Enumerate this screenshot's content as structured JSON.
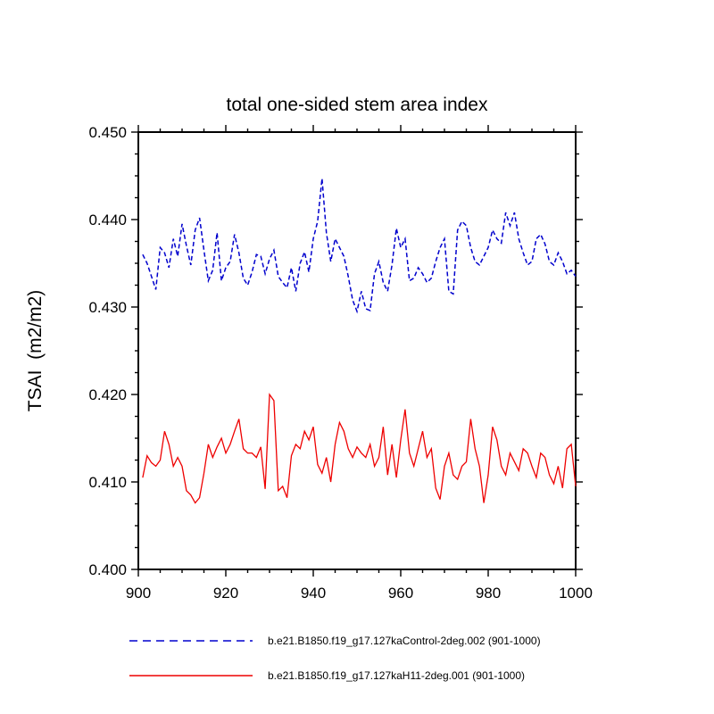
{
  "page": {
    "background": "#ffffff"
  },
  "chart_data": {
    "type": "line",
    "title": "total one-sided stem area index",
    "xlabel": "",
    "ylabel": "TSAI  (m2/m2)",
    "xlim": [
      900,
      1000
    ],
    "ylim": [
      0.4,
      0.45
    ],
    "x_ticks_major": [
      900,
      920,
      940,
      960,
      980,
      1000
    ],
    "x_tick_minor_step": 5,
    "y_ticks_major": [
      0.4,
      0.41,
      0.42,
      0.43,
      0.44,
      0.45
    ],
    "y_tick_minor_step": 0.0025,
    "y_tick_label_decimals": 3,
    "grid": false,
    "legend_position": "bottom",
    "frame_color": "#000000",
    "x_start": 901,
    "x_step": 1,
    "series": [
      {
        "name": "b.e21.B1850.f19_g17.127kaControl-2deg.002 (901-1000)",
        "color": "#0000cd",
        "line_style": "dashed",
        "values": [
          0.436,
          0.435,
          0.4335,
          0.432,
          0.4368,
          0.4362,
          0.4345,
          0.4378,
          0.4358,
          0.4395,
          0.437,
          0.4348,
          0.4388,
          0.4402,
          0.4365,
          0.433,
          0.4342,
          0.4385,
          0.433,
          0.4345,
          0.4352,
          0.4383,
          0.4362,
          0.4333,
          0.4325,
          0.434,
          0.436,
          0.4358,
          0.4338,
          0.4355,
          0.4365,
          0.4335,
          0.4328,
          0.4322,
          0.4345,
          0.4318,
          0.435,
          0.4363,
          0.434,
          0.4378,
          0.4398,
          0.4447,
          0.4385,
          0.4352,
          0.4378,
          0.4368,
          0.4358,
          0.4335,
          0.4308,
          0.4295,
          0.4318,
          0.4298,
          0.4296,
          0.4338,
          0.4352,
          0.4328,
          0.4318,
          0.4348,
          0.439,
          0.4368,
          0.4378,
          0.433,
          0.4333,
          0.4345,
          0.4338,
          0.4328,
          0.4333,
          0.4352,
          0.4368,
          0.4378,
          0.4318,
          0.4315,
          0.4388,
          0.4398,
          0.4393,
          0.4368,
          0.4352,
          0.4348,
          0.4358,
          0.4368,
          0.4388,
          0.4378,
          0.4373,
          0.4408,
          0.4393,
          0.4408,
          0.4378,
          0.4362,
          0.4348,
          0.4352,
          0.4378,
          0.4383,
          0.4372,
          0.4352,
          0.4348,
          0.4362,
          0.4352,
          0.4338,
          0.4342,
          0.4335
        ]
      },
      {
        "name": "b.e21.B1850.f19_g17.127kaH11-2deg.001 (901-1000)",
        "color": "#ee0000",
        "line_style": "solid",
        "values": [
          0.4105,
          0.413,
          0.4122,
          0.4118,
          0.4125,
          0.4158,
          0.4143,
          0.4118,
          0.4128,
          0.4118,
          0.409,
          0.4085,
          0.4076,
          0.4082,
          0.411,
          0.4143,
          0.4128,
          0.414,
          0.415,
          0.4133,
          0.4143,
          0.4158,
          0.4172,
          0.4138,
          0.4133,
          0.4133,
          0.4128,
          0.414,
          0.4092,
          0.42,
          0.4193,
          0.409,
          0.4095,
          0.4082,
          0.413,
          0.4143,
          0.4138,
          0.4158,
          0.4148,
          0.4163,
          0.412,
          0.411,
          0.4128,
          0.41,
          0.4143,
          0.4168,
          0.4158,
          0.4138,
          0.4128,
          0.414,
          0.4133,
          0.4128,
          0.4143,
          0.4118,
          0.4128,
          0.4163,
          0.4108,
          0.4143,
          0.4105,
          0.4148,
          0.4183,
          0.4133,
          0.4118,
          0.4138,
          0.4158,
          0.4128,
          0.4138,
          0.4093,
          0.408,
          0.4118,
          0.4133,
          0.4108,
          0.4103,
          0.4118,
          0.4123,
          0.4172,
          0.4138,
          0.4118,
          0.4076,
          0.4108,
          0.4163,
          0.4148,
          0.4118,
          0.4108,
          0.4133,
          0.4123,
          0.4113,
          0.4138,
          0.4133,
          0.4118,
          0.4105,
          0.4133,
          0.4128,
          0.4108,
          0.4098,
          0.4118,
          0.4093,
          0.4138,
          0.4143,
          0.4095
        ]
      }
    ]
  }
}
